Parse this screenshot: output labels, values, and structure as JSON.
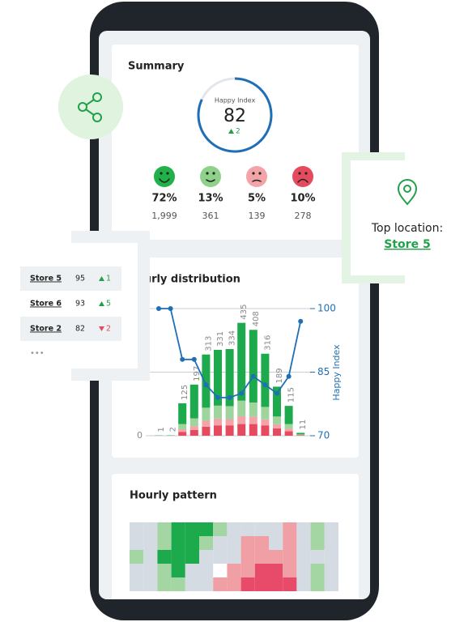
{
  "summary": {
    "title": "Summary",
    "gauge": {
      "label": "Happy Index",
      "value": 82,
      "change": 2,
      "trend": "up"
    },
    "moods": [
      {
        "percent": "72%",
        "count": "1,999",
        "color": "#22b04b"
      },
      {
        "percent": "13%",
        "count": "361",
        "color": "#8fd18b"
      },
      {
        "percent": "5%",
        "count": "139",
        "color": "#f4a3a8"
      },
      {
        "percent": "10%",
        "count": "278",
        "color": "#e64a5f"
      }
    ]
  },
  "top_location": {
    "label": "Top location:",
    "store": "Store 5"
  },
  "store_list": {
    "rows": [
      {
        "name": "Store 5",
        "value": 95,
        "change": 1,
        "trend": "up"
      },
      {
        "name": "Store 6",
        "value": 93,
        "change": 5,
        "trend": "up"
      },
      {
        "name": "Store 2",
        "value": 82,
        "change": 2,
        "trend": "down"
      }
    ],
    "more": "•••"
  },
  "chart_data": {
    "type": "bar",
    "title": "Hourly distribution",
    "categories": [
      null,
      null,
      null,
      null,
      null,
      null,
      null,
      null,
      null,
      null,
      null,
      null,
      null
    ],
    "series": [
      {
        "color": "#e64a5f",
        "values": [
          0,
          0,
          15,
          22,
          35,
          40,
          40,
          45,
          45,
          40,
          28,
          17,
          2
        ]
      },
      {
        "color": "#f4a3a8",
        "values": [
          0,
          0,
          10,
          15,
          23,
          26,
          24,
          30,
          28,
          23,
          16,
          10,
          1
        ]
      },
      {
        "color": "#9fd59d",
        "values": [
          0,
          1,
          20,
          30,
          50,
          50,
          50,
          60,
          55,
          48,
          30,
          18,
          2
        ]
      },
      {
        "color": "#1daa4c",
        "values": [
          1,
          1,
          80,
          130,
          205,
          215,
          220,
          300,
          280,
          205,
          115,
          70,
          6
        ]
      },
      {
        "type": "line",
        "axis": "y2",
        "color": "#1e6fb5",
        "values": [
          100,
          100,
          88,
          88,
          82,
          79,
          79,
          80,
          84,
          82,
          80,
          84,
          97
        ]
      }
    ],
    "totals": [
      1,
      2,
      125,
      197,
      313,
      331,
      334,
      435,
      408,
      316,
      189,
      115,
      11
    ],
    "ylim": [
      0,
      490
    ],
    "yticks": [
      0
    ],
    "y2lim": [
      70,
      100
    ],
    "y2ticks": [
      70,
      85,
      100
    ],
    "y2label": "Happy Index",
    "grid": true
  },
  "hourly_pattern": {
    "title": "Hourly pattern",
    "palette": [
      "#e84a6a",
      "#f0a0a5",
      "#d5dbe2",
      "#a3d6a2",
      "#1daa4c"
    ],
    "levels": [
      [
        0,
        0,
        1,
        2,
        2,
        2,
        1,
        0,
        0,
        0,
        0,
        -1,
        0,
        1,
        0
      ],
      [
        0,
        0,
        1,
        2,
        2,
        1,
        0,
        0,
        -1,
        -1,
        0,
        -1,
        0,
        1,
        0
      ],
      [
        1,
        0,
        2,
        2,
        2,
        0,
        0,
        0,
        -1,
        -1,
        -1,
        -1,
        0,
        0,
        0
      ],
      [
        0,
        0,
        1,
        2,
        0,
        0,
        null,
        -1,
        -1,
        -2,
        -2,
        -1,
        0,
        1,
        0
      ],
      [
        0,
        0,
        1,
        1,
        0,
        0,
        -1,
        -1,
        -2,
        -2,
        -2,
        -2,
        0,
        1,
        0
      ]
    ]
  }
}
